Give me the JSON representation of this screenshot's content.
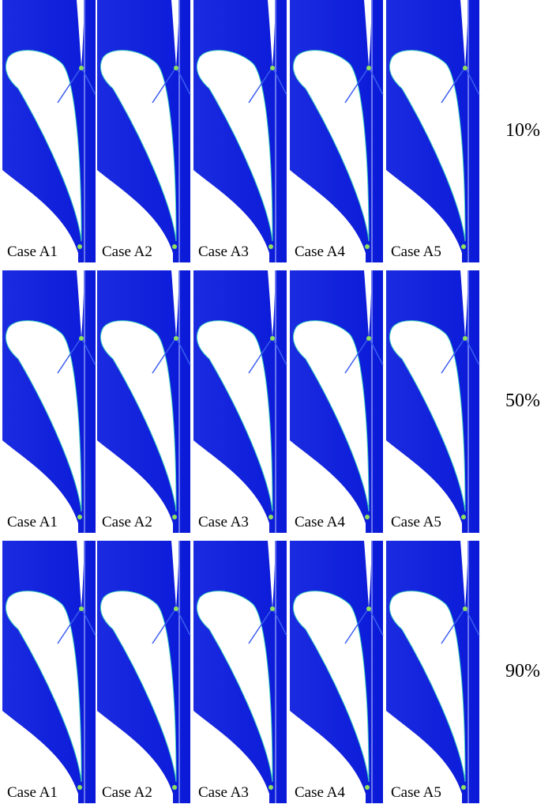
{
  "rows": [
    {
      "label": "10%",
      "cases": [
        "Case A1",
        "Case A2",
        "Case A3",
        "Case A4",
        "Case A5"
      ]
    },
    {
      "label": "50%",
      "cases": [
        "Case A1",
        "Case A2",
        "Case A3",
        "Case A4",
        "Case A5"
      ]
    },
    {
      "label": "90%",
      "cases": [
        "Case A1",
        "Case A2",
        "Case A3",
        "Case A4",
        "Case A5"
      ]
    }
  ]
}
